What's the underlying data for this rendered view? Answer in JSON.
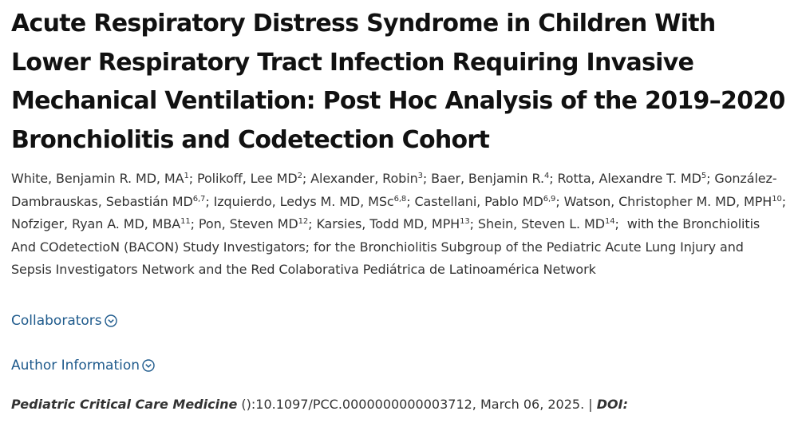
{
  "article": {
    "title": "Acute Respiratory Distress Syndrome in Children With Lower Respiratory Tract Infection Requiring Invasive Mechanical Ventilation: Post Hoc Analysis of the 2019–2020 Bronchiolitis and Codetection Cohort",
    "authors": [
      {
        "name": "White, Benjamin R. MD, MA",
        "sup": "1",
        "sep": "; "
      },
      {
        "name": "Polikoff, Lee MD",
        "sup": "2",
        "sep": "; "
      },
      {
        "name": "Alexander, Robin",
        "sup": "3",
        "sep": "; "
      },
      {
        "name": "Baer, Benjamin R.",
        "sup": "4",
        "sep": "; "
      },
      {
        "name": "Rotta, Alexandre T. MD",
        "sup": "5",
        "sep": "; "
      },
      {
        "name": "González-Dambrauskas, Sebastián MD",
        "sup": "6,7",
        "sep": "; "
      },
      {
        "name": "Izquierdo, Ledys M. MD, MSc",
        "sup": "6,8",
        "sep": "; "
      },
      {
        "name": "Castellani, Pablo MD",
        "sup": "6,9",
        "sep": "; "
      },
      {
        "name": "Watson, Christopher M. MD, MPH",
        "sup": "10",
        "sep": "; "
      },
      {
        "name": "Nofziger, Ryan A. MD, MBA",
        "sup": "11",
        "sep": "; "
      },
      {
        "name": "Pon, Steven MD",
        "sup": "12",
        "sep": "; "
      },
      {
        "name": "Karsies, Todd MD, MPH",
        "sup": "13",
        "sep": "; "
      },
      {
        "name": "Shein, Steven L. MD",
        "sup": "14",
        "sep": ";  "
      }
    ],
    "group_text": "with the Bronchiolitis And COdetectioN (BACON) Study Investigators; for the Bronchiolitis Subgroup of the Pediatric Acute Lung Injury and Sepsis Investigators Network and the Red Colaborativa Pediátrica de Latinoamérica Network",
    "collaborators_label": "Collaborators",
    "author_info_label": "Author Information",
    "citation": {
      "journal": "Pediatric Critical Care Medicine",
      "details": " ():10.1097/PCC.0000000000003712, March 06, 2025. | ",
      "doi_label": "DOI:"
    },
    "link_color": "#1e5a8c",
    "chevron_icon": "chevron-down-circle-icon"
  }
}
